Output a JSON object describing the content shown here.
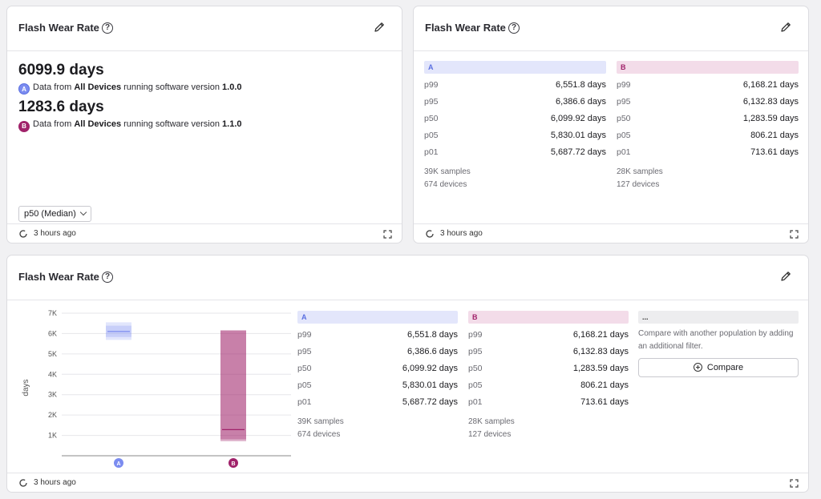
{
  "colors": {
    "a": "#7b8cf0",
    "b": "#a0226a"
  },
  "card1": {
    "title": "Flash Wear Rate",
    "value_a": "6099.9 days",
    "badge_a": "A",
    "desc_a_prefix": "Data from",
    "desc_a_bold": "All Devices",
    "desc_a_mid": "running software version",
    "desc_a_version": "1.0.0",
    "value_b": "1283.6 days",
    "badge_b": "B",
    "desc_b_prefix": "Data from",
    "desc_b_bold": "All Devices",
    "desc_b_mid": "running software version",
    "desc_b_version": "1.1.0",
    "select_value": "p50 (Median)",
    "footer": "3 hours ago"
  },
  "card2": {
    "title": "Flash Wear Rate",
    "footer": "3 hours ago"
  },
  "card3": {
    "title": "Flash Wear Rate",
    "footer": "3 hours ago",
    "compare_header": "...",
    "compare_text": "Compare with another population by adding an additional filter.",
    "compare_button": "Compare"
  },
  "populations": {
    "a": {
      "label": "A",
      "rows": [
        {
          "label": "p99",
          "value": "6,551.8 days"
        },
        {
          "label": "p95",
          "value": "6,386.6 days"
        },
        {
          "label": "p50",
          "value": "6,099.92 days"
        },
        {
          "label": "p05",
          "value": "5,830.01 days"
        },
        {
          "label": "p01",
          "value": "5,687.72 days"
        }
      ],
      "samples": "39K samples",
      "devices": "674 devices"
    },
    "b": {
      "label": "B",
      "rows": [
        {
          "label": "p99",
          "value": "6,168.21 days"
        },
        {
          "label": "p95",
          "value": "6,132.83 days"
        },
        {
          "label": "p50",
          "value": "1,283.59 days"
        },
        {
          "label": "p05",
          "value": "806.21 days"
        },
        {
          "label": "p01",
          "value": "713.61 days"
        }
      ],
      "samples": "28K samples",
      "devices": "127 devices"
    }
  },
  "chart_data": {
    "type": "box",
    "ylabel": "days",
    "ylim": [
      0,
      7000
    ],
    "yticks": [
      "1K",
      "2K",
      "3K",
      "4K",
      "5K",
      "6K",
      "7K"
    ],
    "categories": [
      "A",
      "B"
    ],
    "series": [
      {
        "name": "A",
        "p01": 5687.72,
        "p05": 5830.01,
        "p50": 6099.92,
        "p95": 6386.6,
        "p99": 6551.8
      },
      {
        "name": "B",
        "p01": 713.61,
        "p05": 806.21,
        "p50": 1283.59,
        "p95": 6132.83,
        "p99": 6168.21
      }
    ]
  }
}
